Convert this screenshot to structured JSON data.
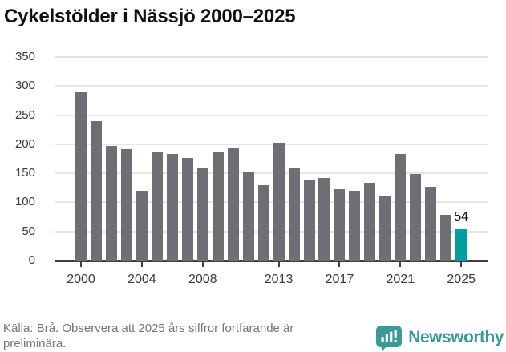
{
  "title": "Cykelstölder i Nässjö 2000–2025",
  "chart_data": {
    "type": "bar",
    "title": "Cykelstölder i Nässjö 2000–2025",
    "categories": [
      2000,
      2001,
      2002,
      2003,
      2004,
      2005,
      2006,
      2007,
      2008,
      2009,
      2010,
      2011,
      2012,
      2013,
      2014,
      2015,
      2016,
      2017,
      2018,
      2019,
      2020,
      2021,
      2022,
      2023,
      2024,
      2025
    ],
    "values": [
      289,
      240,
      197,
      191,
      120,
      188,
      183,
      177,
      160,
      188,
      194,
      151,
      129,
      202,
      160,
      139,
      142,
      122,
      120,
      134,
      110,
      183,
      149,
      127,
      78,
      54
    ],
    "highlight_index": 25,
    "highlight_label": "54",
    "ylim": [
      0,
      350
    ],
    "yticks": [
      0,
      50,
      100,
      150,
      200,
      250,
      300,
      350
    ],
    "xtick_years": [
      2000,
      2004,
      2008,
      2013,
      2017,
      2021,
      2025
    ],
    "grid": "horizontal",
    "legend": "none",
    "bar_color": "#6e6e74",
    "highlight_color": "#00a0a0"
  },
  "footer": {
    "source": "Källa: Brå. Observera att 2025 års siffror fortfarande är preliminära.",
    "brand": "Newsworthy"
  },
  "colors": {
    "background": "#ffffff",
    "bar": "#6e6e74",
    "highlight": "#00a0a0",
    "gridline": "#e5e5e5",
    "axis": "#3f3f44",
    "tick_label": "#3a3a3a",
    "title_text": "#111111",
    "source_text": "#757575",
    "brand_teal": "#3a9b96"
  }
}
